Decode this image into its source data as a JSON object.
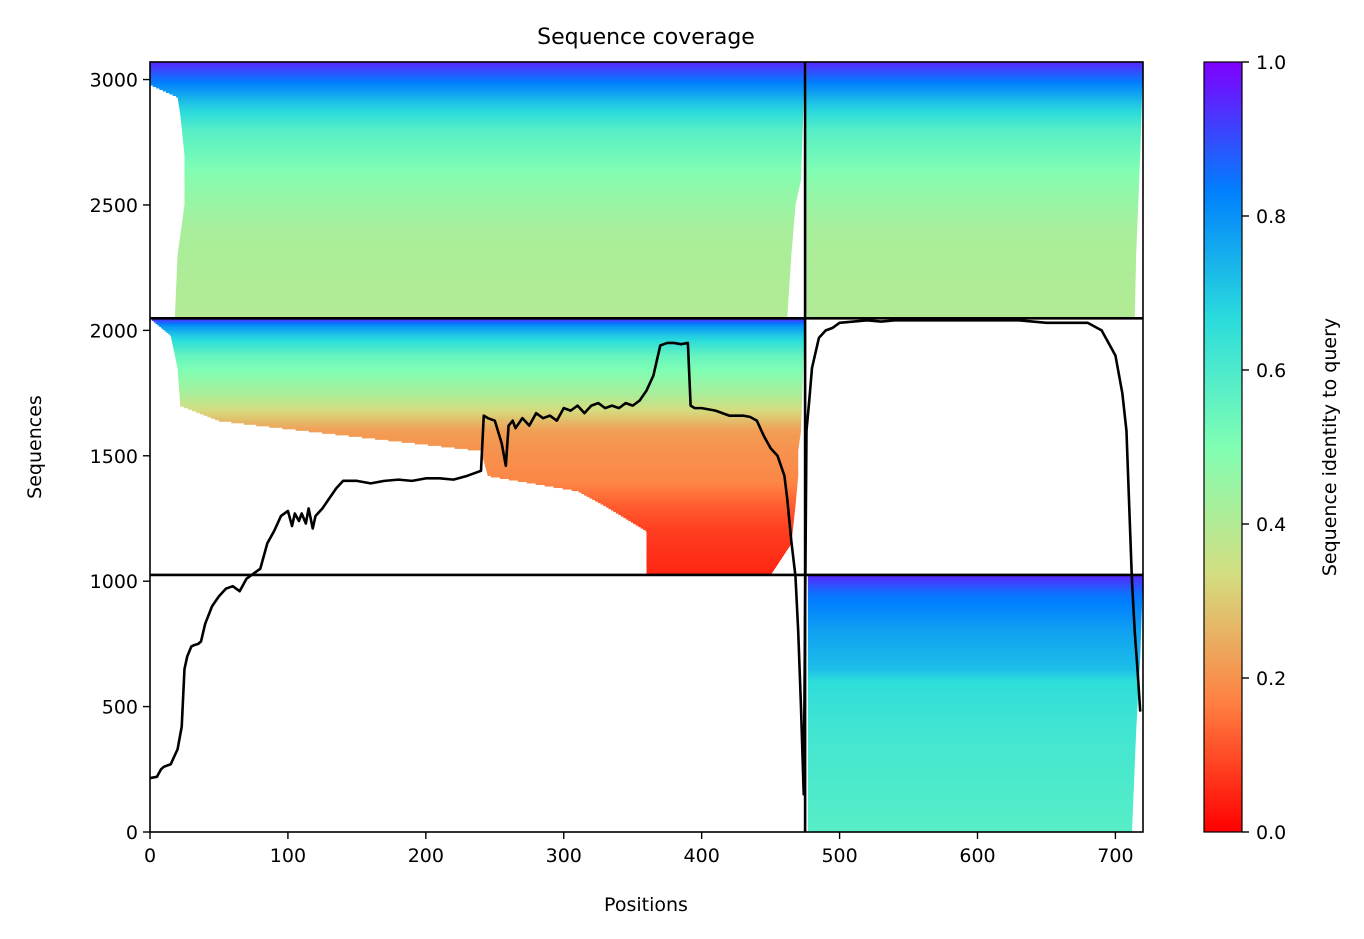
{
  "chart_data": {
    "type": "heatmap",
    "title": "Sequence coverage",
    "xlabel": "Positions",
    "ylabel": "Sequences",
    "xlim": [
      0,
      720
    ],
    "ylim": [
      0,
      3070
    ],
    "xticks": [
      0,
      100,
      200,
      300,
      400,
      500,
      600,
      700
    ],
    "yticks": [
      0,
      500,
      1000,
      1500,
      2000,
      2500,
      3000
    ],
    "grid": false,
    "colorbar": {
      "label": "Sequence identity to query",
      "colormap": "rainbow_r",
      "range": [
        0,
        1
      ],
      "ticks": [
        "0.0",
        "0.2",
        "0.4",
        "0.6",
        "0.8",
        "1.0"
      ],
      "colors": [
        "#ff0000",
        "#ff7f41",
        "#d4dd80",
        "#80feb3",
        "#2adcdc",
        "#007ffe",
        "#8000ff"
      ]
    },
    "block_dividers": {
      "vertical_position": 475,
      "horizontal_sequences": [
        1025,
        2048
      ]
    },
    "blocks": [
      {
        "name": "upper-left",
        "x_range": [
          0,
          475
        ],
        "y_range": [
          2048,
          3070
        ],
        "identity_profile": [
          [
            3070,
            0.95
          ],
          [
            2980,
            0.82
          ],
          [
            2900,
            0.7
          ],
          [
            2800,
            0.58
          ],
          [
            2600,
            0.48
          ],
          [
            2400,
            0.42
          ],
          [
            2048,
            0.4
          ]
        ],
        "start_profile": [
          [
            3070,
            0
          ],
          [
            2980,
            0
          ],
          [
            2930,
            20
          ],
          [
            2860,
            22
          ],
          [
            2700,
            25
          ],
          [
            2500,
            25
          ],
          [
            2300,
            20
          ],
          [
            2048,
            18
          ]
        ],
        "end_profile": [
          [
            3070,
            475
          ],
          [
            2600,
            472
          ],
          [
            2500,
            468
          ],
          [
            2300,
            465
          ],
          [
            2048,
            462
          ]
        ]
      },
      {
        "name": "upper-right",
        "x_range": [
          475,
          720
        ],
        "y_range": [
          2048,
          3070
        ],
        "identity_profile": [
          [
            3070,
            0.95
          ],
          [
            2980,
            0.82
          ],
          [
            2900,
            0.7
          ],
          [
            2800,
            0.58
          ],
          [
            2600,
            0.48
          ],
          [
            2400,
            0.42
          ],
          [
            2048,
            0.4
          ]
        ],
        "start_profile": [
          [
            3070,
            476
          ],
          [
            2048,
            476
          ]
        ],
        "end_profile": [
          [
            3070,
            720
          ],
          [
            2700,
            718
          ],
          [
            2300,
            715
          ],
          [
            2048,
            714
          ]
        ]
      },
      {
        "name": "middle-left",
        "x_range": [
          0,
          475
        ],
        "y_range": [
          1025,
          2048
        ],
        "identity_profile": [
          [
            2048,
            0.95
          ],
          [
            2020,
            0.8
          ],
          [
            1980,
            0.7
          ],
          [
            1900,
            0.55
          ],
          [
            1750,
            0.42
          ],
          [
            1660,
            0.3
          ],
          [
            1600,
            0.22
          ],
          [
            1520,
            0.2
          ],
          [
            1400,
            0.18
          ],
          [
            1300,
            0.12
          ],
          [
            1200,
            0.08
          ],
          [
            1025,
            0.05
          ]
        ],
        "start_profile": [
          [
            2048,
            0
          ],
          [
            1980,
            15
          ],
          [
            1850,
            20
          ],
          [
            1700,
            22
          ],
          [
            1640,
            50
          ],
          [
            1620,
            80
          ],
          [
            1520,
            240
          ],
          [
            1420,
            245
          ],
          [
            1360,
            310
          ],
          [
            1300,
            330
          ],
          [
            1200,
            360
          ],
          [
            1025,
            360
          ]
        ],
        "end_profile": [
          [
            2048,
            475
          ],
          [
            1600,
            472
          ],
          [
            1520,
            470
          ],
          [
            1420,
            470
          ],
          [
            1300,
            468
          ],
          [
            1150,
            465
          ],
          [
            1025,
            450
          ]
        ]
      },
      {
        "name": "lower-right",
        "x_range": [
          475,
          720
        ],
        "y_range": [
          0,
          1025
        ],
        "identity_profile": [
          [
            1025,
            0.95
          ],
          [
            950,
            0.85
          ],
          [
            800,
            0.77
          ],
          [
            650,
            0.72
          ],
          [
            600,
            0.66
          ],
          [
            400,
            0.62
          ],
          [
            0,
            0.58
          ]
        ],
        "start_profile": [
          [
            1025,
            477
          ],
          [
            0,
            477
          ]
        ],
        "end_profile": [
          [
            1025,
            720
          ],
          [
            700,
            718
          ],
          [
            400,
            715
          ],
          [
            0,
            712
          ]
        ]
      }
    ],
    "coverage_line": {
      "name": "coverage",
      "color": "#000000",
      "x": [
        0,
        5,
        8,
        10,
        15,
        20,
        23,
        25,
        27,
        30,
        32,
        35,
        37,
        40,
        45,
        50,
        55,
        60,
        65,
        70,
        75,
        80,
        85,
        90,
        95,
        100,
        103,
        105,
        108,
        110,
        113,
        115,
        118,
        120,
        125,
        130,
        135,
        140,
        150,
        160,
        170,
        180,
        190,
        200,
        210,
        220,
        230,
        235,
        240,
        242,
        245,
        250,
        255,
        258,
        260,
        263,
        265,
        270,
        275,
        280,
        285,
        290,
        295,
        300,
        305,
        310,
        315,
        320,
        325,
        330,
        335,
        340,
        345,
        350,
        355,
        360,
        365,
        370,
        375,
        380,
        385,
        390,
        392,
        395,
        400,
        405,
        410,
        415,
        420,
        425,
        430,
        435,
        440,
        445,
        450,
        455,
        460,
        462,
        465,
        468,
        470,
        472,
        474,
        476,
        478,
        480,
        485,
        490,
        495,
        500,
        510,
        520,
        530,
        540,
        550,
        560,
        570,
        580,
        590,
        600,
        610,
        620,
        630,
        640,
        650,
        660,
        670,
        680,
        690,
        700,
        705,
        708,
        710,
        712,
        714,
        716,
        718,
        719,
        720
      ],
      "y": [
        215,
        220,
        250,
        260,
        270,
        330,
        420,
        650,
        700,
        740,
        745,
        750,
        760,
        830,
        900,
        940,
        970,
        980,
        960,
        1010,
        1030,
        1050,
        1150,
        1200,
        1260,
        1280,
        1220,
        1270,
        1240,
        1270,
        1230,
        1290,
        1210,
        1260,
        1290,
        1330,
        1370,
        1400,
        1400,
        1390,
        1400,
        1405,
        1400,
        1410,
        1410,
        1405,
        1420,
        1430,
        1440,
        1660,
        1650,
        1640,
        1550,
        1460,
        1620,
        1640,
        1610,
        1650,
        1620,
        1670,
        1650,
        1660,
        1640,
        1690,
        1680,
        1700,
        1670,
        1700,
        1710,
        1690,
        1700,
        1690,
        1710,
        1700,
        1720,
        1760,
        1820,
        1940,
        1950,
        1950,
        1945,
        1950,
        1700,
        1690,
        1690,
        1685,
        1680,
        1670,
        1660,
        1660,
        1660,
        1655,
        1640,
        1580,
        1530,
        1500,
        1420,
        1330,
        1160,
        1020,
        800,
        500,
        150,
        1600,
        1720,
        1850,
        1970,
        2000,
        2010,
        2030,
        2035,
        2040,
        2035,
        2040,
        2040,
        2040,
        2040,
        2040,
        2040,
        2040,
        2040,
        2040,
        2040,
        2035,
        2030,
        2030,
        2030,
        2030,
        2000,
        1900,
        1750,
        1600,
        1300,
        1000,
        800,
        650,
        480
      ]
    }
  }
}
